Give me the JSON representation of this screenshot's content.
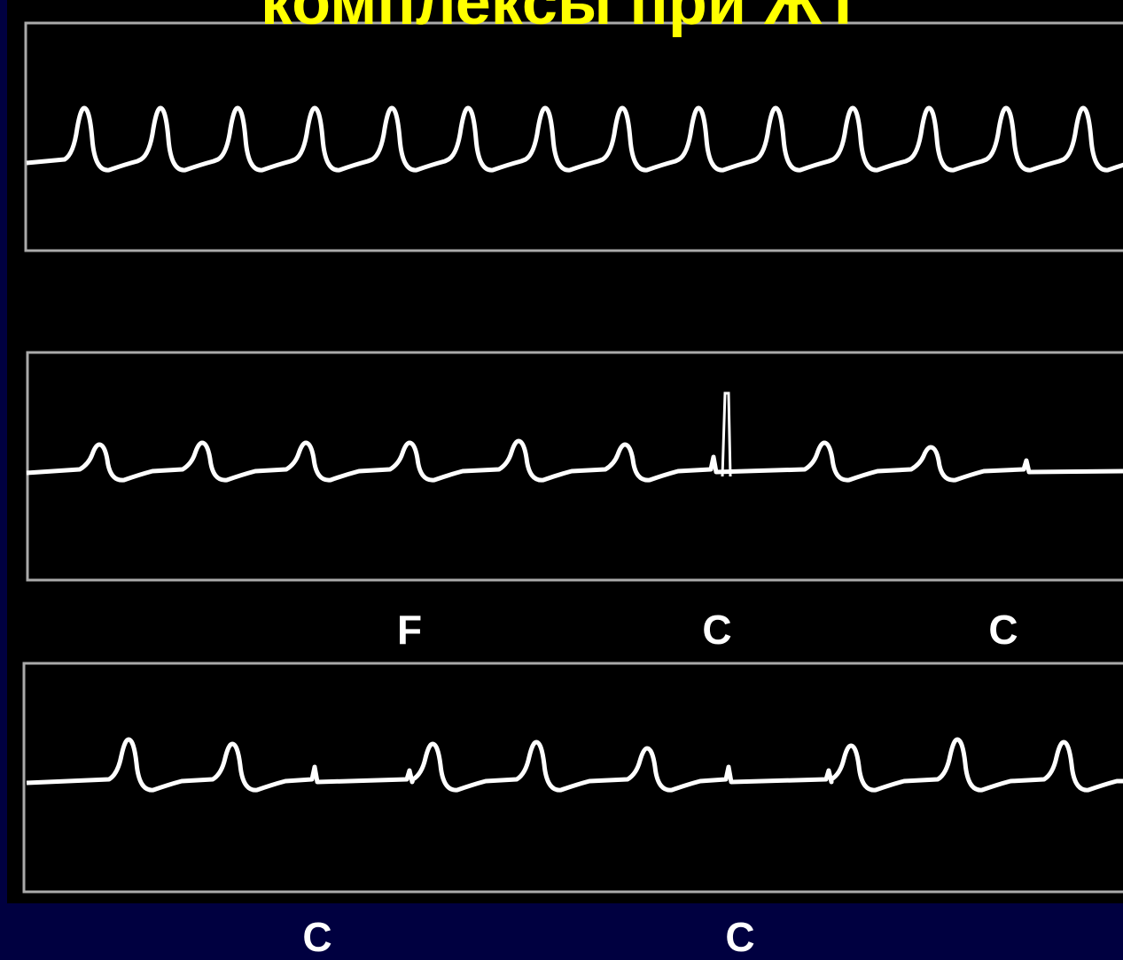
{
  "title": "комплексы при ЖТ",
  "labels": [
    "F",
    "C",
    "C",
    "C",
    "C"
  ]
}
